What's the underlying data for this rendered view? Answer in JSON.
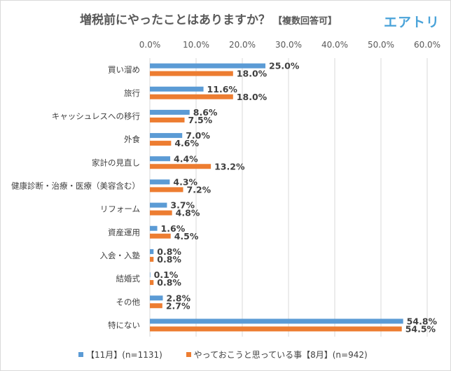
{
  "chart_data": {
    "type": "bar",
    "orientation": "horizontal",
    "title": "増税前にやったことはありますか？",
    "title_note": "【複数回答可】",
    "brand": "エアトリ",
    "xlabel": "",
    "ylabel": "",
    "xlim": [
      0,
      60
    ],
    "x_ticks": [
      "0.0%",
      "10.0%",
      "20.0%",
      "30.0%",
      "40.0%",
      "50.0%",
      "60.0%"
    ],
    "x_tick_values": [
      0,
      10,
      20,
      30,
      40,
      50,
      60
    ],
    "grid": true,
    "legend_position": "bottom",
    "categories": [
      "買い溜め",
      "旅行",
      "キャッシュレスへの移行",
      "外食",
      "家計の見直し",
      "健康診断・治療・医療（美容含む）",
      "リフォーム",
      "資産運用",
      "入会・入塾",
      "結婚式",
      "その他",
      "特にない"
    ],
    "series": [
      {
        "name": "【11月】(n=1131)",
        "color": "#5b9bd5",
        "values": [
          25.0,
          11.6,
          8.6,
          7.0,
          4.4,
          4.3,
          3.7,
          1.6,
          0.8,
          0.1,
          2.8,
          54.8
        ],
        "labels": [
          "25.0%",
          "11.6%",
          "8.6%",
          "7.0%",
          "4.4%",
          "4.3%",
          "3.7%",
          "1.6%",
          "0.8%",
          "0.1%",
          "2.8%",
          "54.8%"
        ]
      },
      {
        "name": "やっておこうと思っている事【8月】(n=942)",
        "color": "#ed7d31",
        "values": [
          18.0,
          18.0,
          7.5,
          4.6,
          13.2,
          7.2,
          4.8,
          4.5,
          0.8,
          0.8,
          2.7,
          54.5
        ],
        "labels": [
          "18.0%",
          "18.0%",
          "7.5%",
          "4.6%",
          "13.2%",
          "7.2%",
          "4.8%",
          "4.5%",
          "0.8%",
          "0.8%",
          "2.7%",
          "54.5%"
        ]
      }
    ]
  },
  "colors": {
    "title": "#595959",
    "brand": "#4aa3d9",
    "grid": "#d9d9d9",
    "text": "#404040"
  }
}
